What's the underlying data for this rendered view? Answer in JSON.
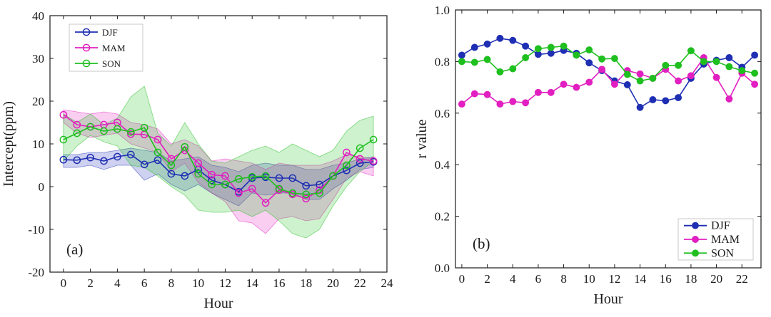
{
  "chart_data": [
    {
      "type": "line",
      "panel_label": "(a)",
      "xlabel": "Hour",
      "ylabel": "Intercept(ppm)",
      "xlim": [
        -1,
        24
      ],
      "ylim": [
        -20,
        40
      ],
      "xticks": [
        "0",
        "2",
        "4",
        "6",
        "8",
        "10",
        "12",
        "14",
        "16",
        "18",
        "20",
        "22",
        "24"
      ],
      "yticks": [
        "-20",
        "-10",
        "0",
        "10",
        "20",
        "30",
        "40"
      ],
      "legend_position": "top-left",
      "x": [
        0,
        1,
        2,
        3,
        4,
        5,
        6,
        7,
        8,
        9,
        10,
        11,
        12,
        13,
        14,
        15,
        16,
        17,
        18,
        19,
        20,
        21,
        22,
        23
      ],
      "series": [
        {
          "name": "DJF",
          "color": "#1f2fb4",
          "marker": "open-circle",
          "values": [
            6.3,
            6.2,
            6.8,
            6.0,
            7.0,
            7.5,
            5.2,
            6.2,
            3.0,
            2.5,
            4.0,
            1.5,
            0.5,
            -1.2,
            2.0,
            2.2,
            2.0,
            2.0,
            0.2,
            0.5,
            2.5,
            3.8,
            5.5,
            5.8
          ],
          "band_upper": [
            7.5,
            7.5,
            8.0,
            8.0,
            8.5,
            9.0,
            8.5,
            8.0,
            6.0,
            6.5,
            7.0,
            5.0,
            4.5,
            3.5,
            5.0,
            5.5,
            5.0,
            5.0,
            4.0,
            4.0,
            5.0,
            5.5,
            6.5,
            7.0
          ],
          "band_lower": [
            4.5,
            4.5,
            5.0,
            4.0,
            5.0,
            5.0,
            1.5,
            3.0,
            0.5,
            -1.0,
            0.5,
            -1.5,
            -3.0,
            -4.5,
            -1.5,
            -2.0,
            -1.5,
            -1.5,
            -3.0,
            -3.0,
            -0.5,
            1.5,
            4.0,
            4.5
          ]
        },
        {
          "name": "MAM",
          "color": "#e21fc0",
          "marker": "open-circle",
          "values": [
            16.8,
            14.5,
            14.0,
            14.5,
            15.0,
            12.3,
            12.2,
            11.0,
            6.5,
            8.5,
            5.5,
            2.8,
            2.5,
            -1.5,
            -0.5,
            -3.8,
            -0.8,
            -1.8,
            -2.8,
            -0.8,
            2.5,
            8.0,
            6.5,
            6.0
          ],
          "band_upper": [
            18.0,
            17.5,
            17.0,
            17.5,
            17.0,
            15.0,
            14.5,
            13.5,
            10.0,
            11.0,
            9.5,
            6.0,
            6.5,
            6.0,
            5.5,
            4.0,
            5.5,
            5.0,
            5.0,
            5.0,
            6.0,
            7.5,
            7.0,
            6.5
          ],
          "band_lower": [
            15.0,
            12.5,
            11.5,
            12.0,
            12.5,
            10.0,
            9.0,
            8.0,
            3.5,
            5.5,
            1.0,
            -1.5,
            -3.5,
            -8.0,
            -8.5,
            -11.0,
            -7.5,
            -7.0,
            -8.0,
            -7.5,
            -3.0,
            2.0,
            3.5,
            2.5
          ]
        },
        {
          "name": "SON",
          "color": "#1fbf1f",
          "marker": "open-circle",
          "values": [
            11.0,
            12.5,
            14.0,
            13.0,
            13.5,
            12.8,
            13.8,
            8.0,
            5.0,
            9.3,
            3.0,
            0.5,
            0.5,
            1.8,
            2.3,
            2.5,
            -0.5,
            -1.5,
            -1.8,
            -1.5,
            2.5,
            5.0,
            9.0,
            11.0
          ],
          "band_upper": [
            17.0,
            15.0,
            17.0,
            14.5,
            16.0,
            21.0,
            23.5,
            12.5,
            9.5,
            15.0,
            10.0,
            6.0,
            5.5,
            7.0,
            8.5,
            9.5,
            8.0,
            10.0,
            8.5,
            7.0,
            8.5,
            13.0,
            15.5,
            16.5
          ],
          "band_lower": [
            6.0,
            9.5,
            12.0,
            10.5,
            9.5,
            5.0,
            4.5,
            2.5,
            0.0,
            -2.0,
            -5.5,
            -6.0,
            -6.0,
            -5.5,
            -7.0,
            -5.5,
            -8.0,
            -11.0,
            -12.0,
            -10.0,
            -4.5,
            0.0,
            3.5,
            6.0
          ]
        }
      ]
    },
    {
      "type": "line",
      "panel_label": "(b)",
      "xlabel": "Hour",
      "ylabel": "r value",
      "xlim": [
        -0.5,
        23.5
      ],
      "ylim": [
        0.0,
        1.0
      ],
      "xticks": [
        "0",
        "2",
        "4",
        "6",
        "8",
        "10",
        "12",
        "14",
        "16",
        "18",
        "20",
        "22"
      ],
      "yticks": [
        "0.0",
        "0.2",
        "0.4",
        "0.6",
        "0.8",
        "1.0"
      ],
      "legend_position": "bottom-right",
      "x": [
        0,
        1,
        2,
        3,
        4,
        5,
        6,
        7,
        8,
        9,
        10,
        11,
        12,
        13,
        14,
        15,
        16,
        17,
        18,
        19,
        20,
        21,
        22,
        23
      ],
      "series": [
        {
          "name": "DJF",
          "color": "#1f2fb4",
          "marker": "filled-circle",
          "values": [
            0.825,
            0.855,
            0.868,
            0.89,
            0.882,
            0.86,
            0.828,
            0.832,
            0.843,
            0.832,
            0.795,
            0.765,
            0.725,
            0.71,
            0.622,
            0.652,
            0.648,
            0.66,
            0.735,
            0.79,
            0.805,
            0.815,
            0.778,
            0.825
          ]
        },
        {
          "name": "MAM",
          "color": "#e21fc0",
          "marker": "filled-circle",
          "values": [
            0.635,
            0.675,
            0.672,
            0.635,
            0.645,
            0.64,
            0.68,
            0.68,
            0.712,
            0.7,
            0.72,
            0.77,
            0.712,
            0.765,
            0.752,
            0.735,
            0.77,
            0.725,
            0.745,
            0.815,
            0.738,
            0.655,
            0.755,
            0.712
          ]
        },
        {
          "name": "SON",
          "color": "#1fbf1f",
          "marker": "filled-circle",
          "values": [
            0.8,
            0.797,
            0.808,
            0.76,
            0.772,
            0.815,
            0.85,
            0.855,
            0.86,
            0.825,
            0.845,
            0.81,
            0.812,
            0.75,
            0.725,
            0.735,
            0.785,
            0.785,
            0.842,
            0.8,
            0.8,
            0.78,
            0.765,
            0.755
          ]
        }
      ]
    }
  ]
}
